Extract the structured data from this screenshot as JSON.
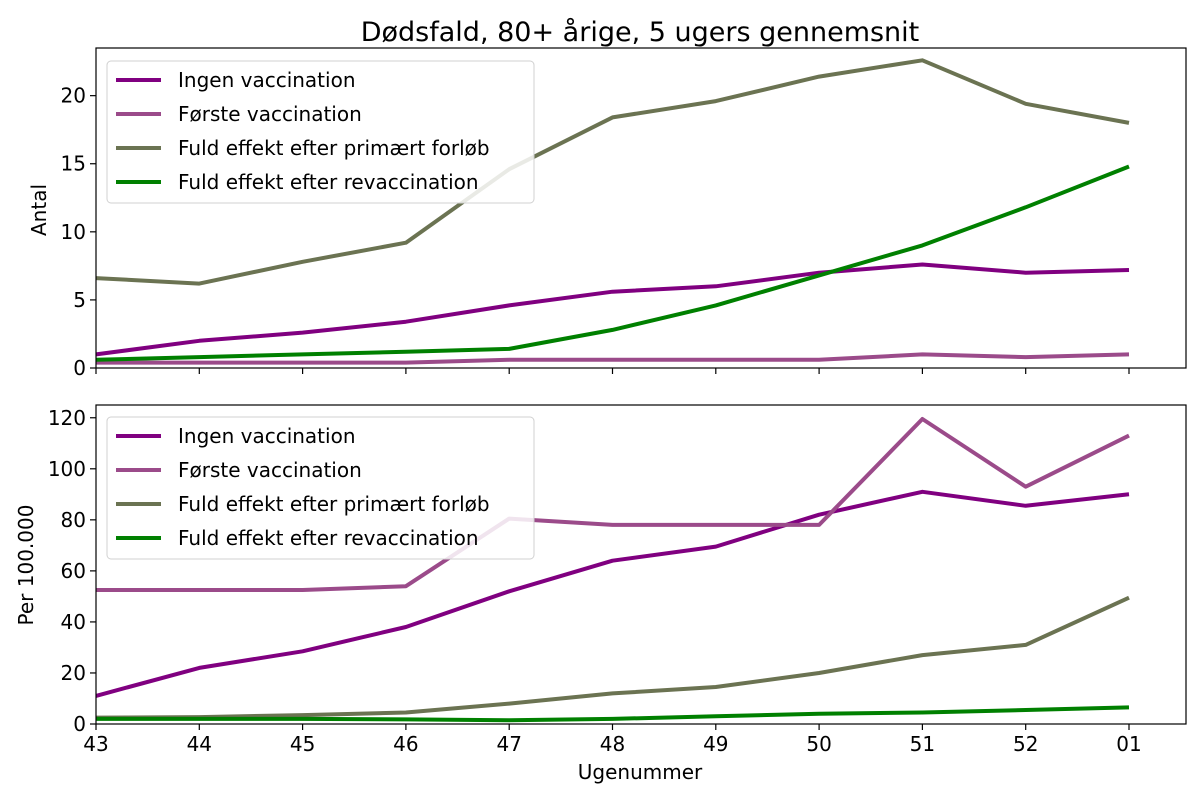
{
  "chart_data": {
    "type": "line",
    "title": "Dødsfald, 80+ årige, 5 ugers gennemsnit",
    "xlabel": "Ugenummer",
    "categories": [
      "43",
      "44",
      "45",
      "46",
      "47",
      "48",
      "49",
      "50",
      "51",
      "52",
      "01"
    ],
    "colors": {
      "ingen": "#800080",
      "foerste": "#9b4b8a",
      "primaert": "#6b7352",
      "revacc": "#008000"
    },
    "legend_position": "top-left",
    "grid": false,
    "panels": [
      {
        "ylabel": "Antal",
        "ylim": [
          0,
          23.5
        ],
        "yticks": [
          0,
          5,
          10,
          15,
          20
        ],
        "series": [
          {
            "name": "Ingen vaccination",
            "color_key": "ingen",
            "values": [
              1.0,
              2.0,
              2.6,
              3.4,
              4.6,
              5.6,
              6.0,
              7.0,
              7.6,
              7.0,
              7.2
            ]
          },
          {
            "name": "Første vaccination",
            "color_key": "foerste",
            "values": [
              0.4,
              0.4,
              0.4,
              0.4,
              0.6,
              0.6,
              0.6,
              0.6,
              1.0,
              0.8,
              1.0
            ]
          },
          {
            "name": "Fuld effekt efter primært forløb",
            "color_key": "primaert",
            "values": [
              6.6,
              6.2,
              7.8,
              9.2,
              14.6,
              18.4,
              19.6,
              21.4,
              22.6,
              19.4,
              18.0
            ]
          },
          {
            "name": "Fuld effekt efter revaccination",
            "color_key": "revacc",
            "values": [
              0.6,
              0.8,
              1.0,
              1.2,
              1.4,
              2.8,
              4.6,
              6.8,
              9.0,
              11.8,
              14.8
            ]
          }
        ]
      },
      {
        "ylabel": "Per 100.000",
        "ylim": [
          0,
          125
        ],
        "yticks": [
          0,
          20,
          40,
          60,
          80,
          100,
          120
        ],
        "series": [
          {
            "name": "Ingen vaccination",
            "color_key": "ingen",
            "values": [
              11,
              22,
              28.5,
              38,
              52,
              64,
              69.5,
              82,
              91,
              85.5,
              90
            ]
          },
          {
            "name": "Første vaccination",
            "color_key": "foerste",
            "values": [
              52.5,
              52.5,
              52.5,
              54,
              80.5,
              78,
              78,
              78,
              119.5,
              93,
              113
            ]
          },
          {
            "name": "Fuld effekt efter primært forløb",
            "color_key": "primaert",
            "values": [
              2.5,
              2.7,
              3.5,
              4.5,
              8,
              12,
              14.5,
              20,
              27,
              31,
              49.5
            ]
          },
          {
            "name": "Fuld effekt efter revaccination",
            "color_key": "revacc",
            "values": [
              2.0,
              2.0,
              2.0,
              1.8,
              1.5,
              2.0,
              3.0,
              4.0,
              4.5,
              5.5,
              6.5
            ]
          }
        ]
      }
    ]
  }
}
